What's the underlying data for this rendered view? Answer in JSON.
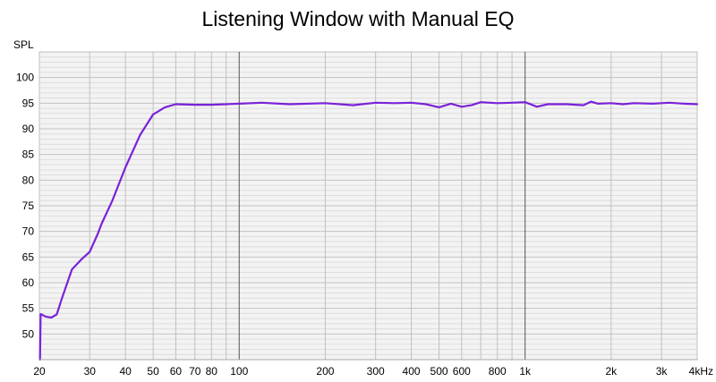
{
  "chart_data": {
    "type": "line",
    "title": "Listening Window with Manual EQ",
    "ylabel": "SPL",
    "xlabel": "",
    "x_scale": "log",
    "xlim": [
      20,
      4000
    ],
    "ylim": [
      45,
      105
    ],
    "grid": true,
    "y_ticks": [
      50,
      55,
      60,
      65,
      70,
      75,
      80,
      85,
      90,
      95,
      100
    ],
    "x_ticks": [
      {
        "value": 20,
        "label": "20"
      },
      {
        "value": 30,
        "label": "30"
      },
      {
        "value": 40,
        "label": "40"
      },
      {
        "value": 50,
        "label": "50"
      },
      {
        "value": 60,
        "label": "60"
      },
      {
        "value": 70,
        "label": "70"
      },
      {
        "value": 80,
        "label": "80"
      },
      {
        "value": 100,
        "label": "100"
      },
      {
        "value": 200,
        "label": "200"
      },
      {
        "value": 300,
        "label": "300"
      },
      {
        "value": 400,
        "label": "400"
      },
      {
        "value": 500,
        "label": "500"
      },
      {
        "value": 600,
        "label": "600"
      },
      {
        "value": 800,
        "label": "800"
      },
      {
        "value": 1000,
        "label": "1k"
      },
      {
        "value": 2000,
        "label": "2k"
      },
      {
        "value": 3000,
        "label": "3k"
      },
      {
        "value": 4000,
        "label": "4kHz"
      }
    ],
    "series": [
      {
        "color": "#7a22d8",
        "points": [
          [
            20.1,
            45
          ],
          [
            20.2,
            53.9
          ],
          [
            21,
            53.4
          ],
          [
            22,
            53.2
          ],
          [
            23,
            53.8
          ],
          [
            24,
            57
          ],
          [
            26,
            62.6
          ],
          [
            28,
            64.5
          ],
          [
            30,
            66
          ],
          [
            32,
            69.5
          ],
          [
            33,
            71.5
          ],
          [
            36,
            76
          ],
          [
            40,
            82.5
          ],
          [
            45,
            88.8
          ],
          [
            50,
            92.8
          ],
          [
            55,
            94.2
          ],
          [
            60,
            94.8
          ],
          [
            70,
            94.7
          ],
          [
            80,
            94.7
          ],
          [
            90,
            94.8
          ],
          [
            100,
            94.9
          ],
          [
            120,
            95.1
          ],
          [
            150,
            94.8
          ],
          [
            200,
            95.0
          ],
          [
            250,
            94.6
          ],
          [
            300,
            95.1
          ],
          [
            350,
            95.0
          ],
          [
            400,
            95.1
          ],
          [
            450,
            94.8
          ],
          [
            500,
            94.2
          ],
          [
            550,
            94.9
          ],
          [
            600,
            94.3
          ],
          [
            650,
            94.6
          ],
          [
            700,
            95.2
          ],
          [
            800,
            95.0
          ],
          [
            900,
            95.1
          ],
          [
            1000,
            95.2
          ],
          [
            1100,
            94.3
          ],
          [
            1200,
            94.8
          ],
          [
            1400,
            94.8
          ],
          [
            1600,
            94.6
          ],
          [
            1700,
            95.3
          ],
          [
            1800,
            94.9
          ],
          [
            2000,
            95.0
          ],
          [
            2200,
            94.8
          ],
          [
            2400,
            95.0
          ],
          [
            2800,
            94.9
          ],
          [
            3000,
            95.0
          ],
          [
            3200,
            95.1
          ],
          [
            3600,
            94.9
          ],
          [
            4000,
            94.8
          ]
        ]
      }
    ]
  }
}
